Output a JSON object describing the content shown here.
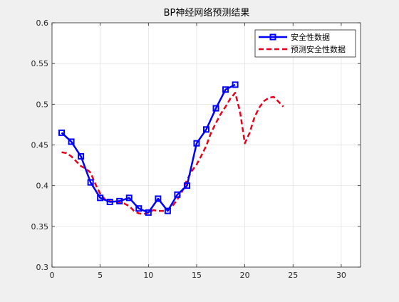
{
  "figure": {
    "background": "#f0f0f0"
  },
  "chart_data": {
    "type": "line",
    "title": "BP神经网络预测结果",
    "xlabel": "",
    "ylabel": "",
    "xlim": [
      0,
      32
    ],
    "ylim": [
      0.3,
      0.6
    ],
    "xticks": [
      0,
      5,
      10,
      15,
      20,
      25,
      30
    ],
    "yticks": [
      0.3,
      0.35,
      0.4,
      0.45,
      0.5,
      0.55,
      0.6
    ],
    "xtick_labels": [
      "0",
      "5",
      "10",
      "15",
      "20",
      "25",
      "30"
    ],
    "ytick_labels": [
      "0.3",
      "0.35",
      "0.4",
      "0.45",
      "0.5",
      "0.55",
      "0.6"
    ],
    "grid": true,
    "legend_position": "top-right",
    "series": [
      {
        "name": "安全性数据",
        "color": "#0000ff",
        "style": "solid-square-markers",
        "x": [
          1,
          2,
          3,
          4,
          5,
          6,
          7,
          8,
          9,
          10,
          11,
          12,
          13,
          14,
          15,
          16,
          17,
          18,
          19
        ],
        "y": [
          0.465,
          0.454,
          0.436,
          0.404,
          0.385,
          0.38,
          0.381,
          0.385,
          0.372,
          0.367,
          0.384,
          0.369,
          0.389,
          0.4,
          0.452,
          0.469,
          0.495,
          0.518,
          0.524
        ]
      },
      {
        "name": "预测安全性数据",
        "color": "#e8001c",
        "style": "dashed",
        "x": [
          1,
          1.5,
          2,
          2.5,
          3,
          3.5,
          4,
          4.5,
          5,
          5.5,
          6,
          6.5,
          7,
          7.5,
          8,
          8.5,
          9,
          9.5,
          10,
          10.5,
          11,
          11.5,
          12,
          12.5,
          13,
          13.5,
          14,
          14.5,
          15,
          15.5,
          16,
          16.5,
          17,
          17.5,
          18,
          18.5,
          19,
          19.5,
          20,
          20.5,
          21,
          21.5,
          22,
          22.5,
          23,
          23.5,
          24
        ],
        "y": [
          0.441,
          0.44,
          0.436,
          0.43,
          0.424,
          0.421,
          0.416,
          0.402,
          0.39,
          0.383,
          0.381,
          0.38,
          0.379,
          0.378,
          0.375,
          0.369,
          0.366,
          0.365,
          0.367,
          0.37,
          0.369,
          0.369,
          0.37,
          0.375,
          0.383,
          0.393,
          0.407,
          0.418,
          0.426,
          0.437,
          0.449,
          0.465,
          0.477,
          0.488,
          0.497,
          0.507,
          0.514,
          0.491,
          0.452,
          0.465,
          0.484,
          0.496,
          0.504,
          0.508,
          0.509,
          0.503,
          0.497
        ]
      }
    ]
  }
}
